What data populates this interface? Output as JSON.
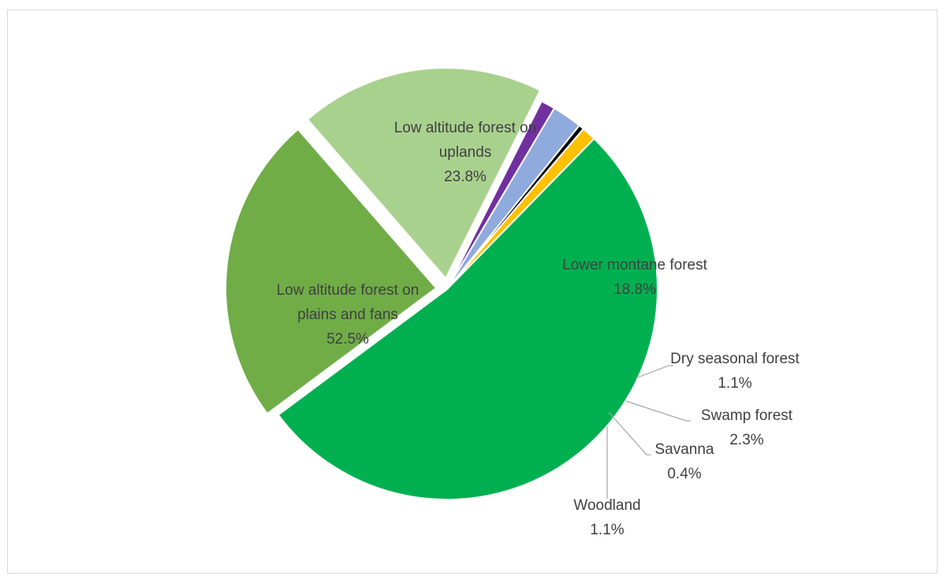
{
  "chart_data": {
    "type": "pie",
    "title": "",
    "slices": [
      {
        "label": "Lower montane forest",
        "value": 18.8,
        "display": "18.8%",
        "color": "#a9d18e"
      },
      {
        "label": "Dry seasonal forest",
        "value": 1.1,
        "display": "1.1%",
        "color": "#7030a0"
      },
      {
        "label": "Swamp forest",
        "value": 2.3,
        "display": "2.3%",
        "color": "#8faadc"
      },
      {
        "label": "Savanna",
        "value": 0.4,
        "display": "0.4%",
        "color": "#000000"
      },
      {
        "label": "Woodland",
        "value": 1.1,
        "display": "1.1%",
        "color": "#ffc000"
      },
      {
        "label": "Low altitude forest on plains and fans",
        "value": 52.5,
        "display": "52.5%",
        "color": "#00b050"
      },
      {
        "label": "Low altitude forest on uplands",
        "value": 23.8,
        "display": "23.8%",
        "color": "#70ad47"
      }
    ]
  }
}
